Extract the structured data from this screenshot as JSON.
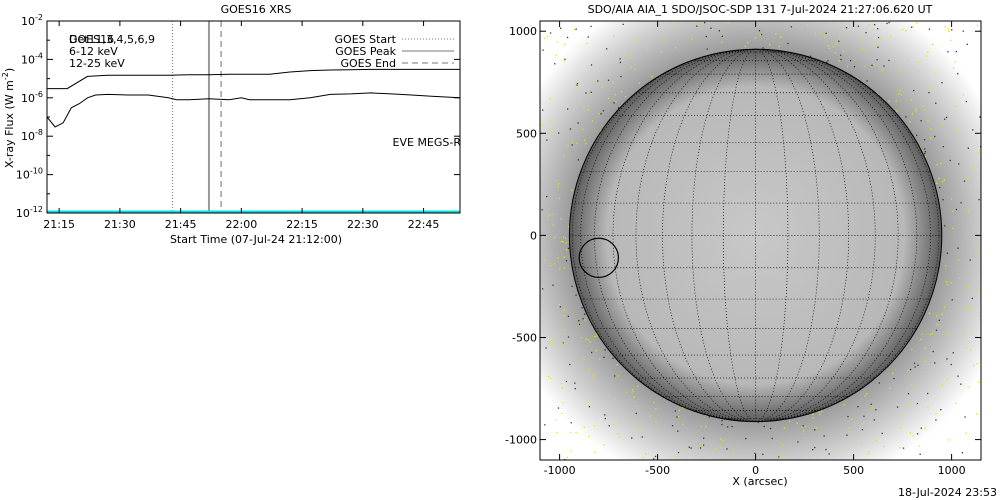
{
  "chart_data": [
    {
      "type": "line",
      "title": "GOES16 XRS",
      "xlabel": "Start Time (07-Jul-24 21:12:00)",
      "ylabel": "X-ray Flux (W m^-2)",
      "ylabel_main": "X-ray Flux (W m",
      "ylabel_exp": "-2",
      "ylabel_close": ")",
      "y_scale": "log",
      "xlim_minutes": [
        0,
        102
      ],
      "ylim": [
        1e-12,
        0.01
      ],
      "x_ticks": [
        {
          "minute": 3,
          "label": "21:15"
        },
        {
          "minute": 18,
          "label": "21:30"
        },
        {
          "minute": 33,
          "label": "21:45"
        },
        {
          "minute": 48,
          "label": "22:00"
        },
        {
          "minute": 63,
          "label": "22:15"
        },
        {
          "minute": 78,
          "label": "22:30"
        },
        {
          "minute": 93,
          "label": "22:45"
        }
      ],
      "y_ticks": [
        {
          "exp": -2,
          "base": "10",
          "sup": "-2"
        },
        {
          "exp": -4,
          "base": "10",
          "sup": "-4"
        },
        {
          "exp": -6,
          "base": "10",
          "sup": "-6"
        },
        {
          "exp": -8,
          "base": "10",
          "sup": "-8"
        },
        {
          "exp": -10,
          "base": "10",
          "sup": "-10"
        },
        {
          "exp": -12,
          "base": "10",
          "sup": "-12"
        }
      ],
      "legend_top_left": [
        {
          "text": "GOES16",
          "color": "#000000"
        },
        {
          "text": "Det11,3,4,5,6,9",
          "color": "#000000"
        },
        {
          "text": "6-12 keV",
          "color": "#e010e0"
        },
        {
          "text": "12-25 keV",
          "color": "#00e000"
        }
      ],
      "legend_top_right": [
        {
          "text": "GOES Start",
          "style": "dotted"
        },
        {
          "text": "GOES Peak",
          "style": "solid"
        },
        {
          "text": "GOES End",
          "style": "dashed"
        }
      ],
      "annotation": {
        "text": "EVE MEGS-R",
        "color": "#00e0e0"
      },
      "vertical_markers": [
        {
          "name": "GOES Start",
          "minute": 31,
          "style": "dotted"
        },
        {
          "name": "GOES Peak",
          "minute": 40,
          "style": "solid"
        },
        {
          "name": "GOES End",
          "minute": 43,
          "style": "dashed"
        }
      ],
      "series": [
        {
          "color": "#000000",
          "x": [
            0,
            5,
            10,
            15,
            20,
            25,
            30,
            35,
            40,
            45,
            50,
            55,
            60,
            65,
            70,
            75,
            80,
            85,
            90,
            95,
            102
          ],
          "values": [
            3e-06,
            3e-06,
            1.3e-05,
            1.5e-05,
            1.5e-05,
            1.5e-05,
            1.5e-05,
            1.6e-05,
            1.6e-05,
            1.7e-05,
            1.7e-05,
            1.7e-05,
            2.2e-05,
            2.6e-05,
            2.8e-05,
            2.9e-05,
            3e-05,
            3e-05,
            3e-05,
            3e-05,
            3e-05
          ]
        },
        {
          "color": "#000000",
          "x": [
            0,
            2,
            4,
            6,
            8,
            10,
            12,
            15,
            20,
            25,
            30,
            32,
            35,
            40,
            45,
            48,
            50,
            55,
            60,
            65,
            70,
            75,
            80,
            85,
            90,
            95,
            102
          ],
          "values": [
            1e-07,
            3e-08,
            5e-08,
            3e-07,
            5e-07,
            1e-06,
            1.4e-06,
            1.5e-06,
            1.4e-06,
            1.4e-06,
            1e-06,
            8e-07,
            8e-07,
            9e-07,
            8e-07,
            1e-06,
            8e-07,
            8e-07,
            8e-07,
            1e-06,
            1.5e-06,
            1.6e-06,
            1.8e-06,
            1.6e-06,
            1.4e-06,
            1.2e-06,
            1e-06
          ]
        }
      ],
      "baseline": {
        "color": "#00e0e0",
        "value": 1e-12
      }
    },
    {
      "type": "heatmap",
      "title": "SDO/AIA AIA_1 SDO/JSOC-SDP 131  7-Jul-2024 21:27:06.620 UT",
      "xlabel": "X (arcsec)",
      "xlim": [
        -1100,
        1150
      ],
      "ylim": [
        -1100,
        1050
      ],
      "x_ticks": [
        -1000,
        -500,
        0,
        500,
        1000
      ],
      "y_ticks": [
        1000,
        500,
        0,
        -500,
        -1000
      ],
      "solar_radius_arcsec": 950,
      "grid_spacing_deg": 10,
      "circled_region": {
        "x": -800,
        "y": -110,
        "r": 100
      }
    }
  ],
  "footer_date": "18-Jul-2024 23:53"
}
